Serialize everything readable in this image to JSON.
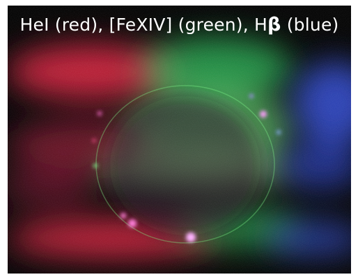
{
  "image": {
    "caption_prefix": "HeI (red), [FeXIV] (green), H",
    "caption_greek": "β",
    "caption_suffix": " (blue)"
  },
  "colors": {
    "red_channel": "#ff2a4a",
    "green_channel": "#3dff7a",
    "blue_channel": "#3a5cff",
    "prominence": "#ff7ad9"
  }
}
